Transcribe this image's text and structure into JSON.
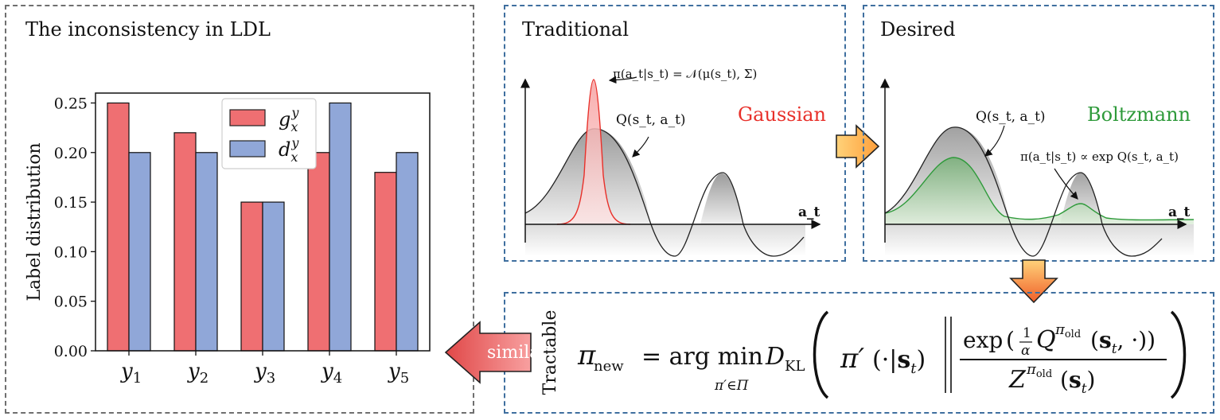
{
  "panels": {
    "ldl": {
      "title": "The inconsistency in LDL"
    },
    "traditional": {
      "title": "Traditional",
      "policy_label": "π(a_t|s_t) = 𝒩(μ(s_t), Σ)",
      "q_label": "Q(s_t, a_t)",
      "dist_label": "Gaussian",
      "axis_label": "a_t"
    },
    "desired": {
      "title": "Desired",
      "q_label": "Q(s_t, a_t)",
      "dist_label": "Boltzmann",
      "policy_label": "π(a_t|s_t) ∝ exp Q(s_t, a_t)",
      "axis_label": "a_t"
    },
    "tractable": {
      "title": "Tractable",
      "formula": "π_new = arg min_{π′∈Π} D_KL( π′(·|s_t) ‖ exp( (1/α) Q^{π_old}(s_t, ·) ) / Z^{π_old}(s_t) )"
    }
  },
  "similar_label": "similar",
  "colors": {
    "g_series": "#ef6f72",
    "d_series": "#90a7d8",
    "gaussian": "#e8302a",
    "boltzmann": "#2e9a3a",
    "arrow_fill": "#ffb24a",
    "similar_arrow": "#f07070"
  },
  "chart_data": {
    "type": "bar",
    "categories": [
      "y1",
      "y2",
      "y3",
      "y4",
      "y5"
    ],
    "ylabel": "Label distribution",
    "ylim": [
      0,
      0.26
    ],
    "yticks": [
      "0.00",
      "0.05",
      "0.10",
      "0.15",
      "0.20",
      "0.25"
    ],
    "legend": "top-center",
    "series": [
      {
        "name": "g_x^y",
        "values": [
          0.25,
          0.22,
          0.15,
          0.2,
          0.18
        ]
      },
      {
        "name": "d_x^y",
        "values": [
          0.2,
          0.2,
          0.15,
          0.25,
          0.2
        ]
      }
    ]
  }
}
